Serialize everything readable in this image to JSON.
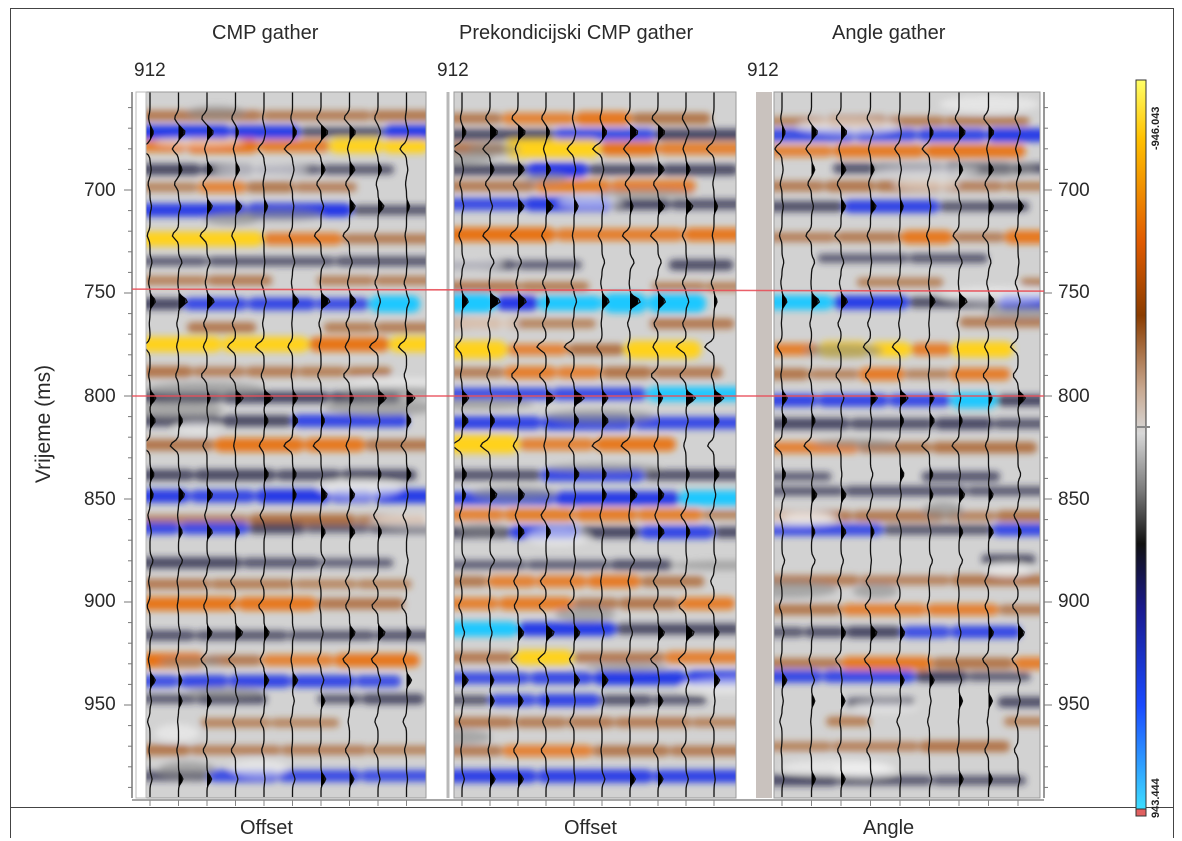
{
  "panels": [
    {
      "title": "CMP gather",
      "trace_label": "912",
      "x_axis_label": "Offset"
    },
    {
      "title": "Prekondicijski CMP gather",
      "trace_label": "912",
      "x_axis_label": "Offset"
    },
    {
      "title": "Angle gather",
      "trace_label": "912",
      "x_axis_label": "Angle"
    }
  ],
  "y_axis": {
    "title": "Vrijeme (ms)",
    "unit": "ms",
    "range": [
      655,
      995
    ],
    "ticks": [
      "700",
      "750",
      "800",
      "850",
      "900",
      "950"
    ]
  },
  "horizon_lines_ms": [
    752,
    800
  ],
  "colorbar": {
    "top_label": "-946.043",
    "bottom_label": "943.444",
    "colors_top_to_bottom": [
      "#ffff66",
      "#ffb000",
      "#e05a00",
      "#8a3c00",
      "#c8a890",
      "#d0d0d0",
      "#1a1a1a",
      "#1a1aa0",
      "#1a4aff",
      "#40e0ff"
    ]
  },
  "colors": {
    "horizon": "#e8505a",
    "positive": "#e06a10",
    "negative": "#1a30e0"
  }
}
